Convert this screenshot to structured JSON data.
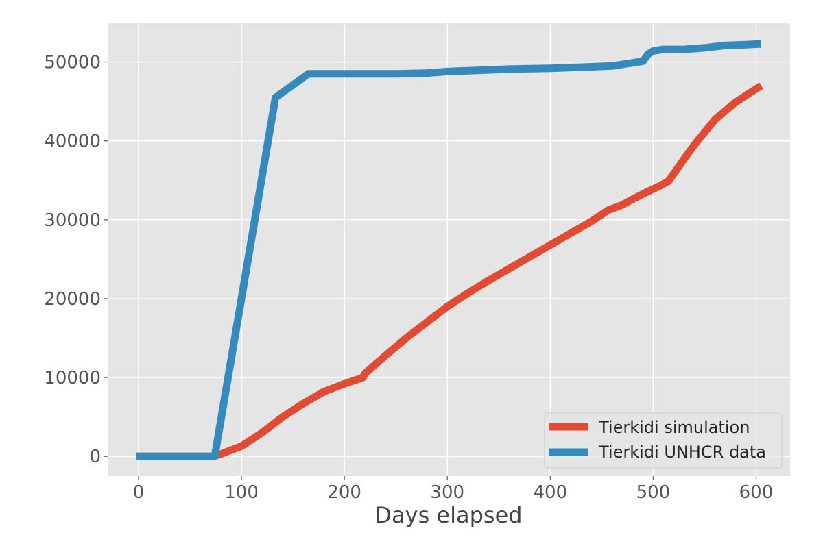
{
  "chart_data": {
    "type": "line",
    "title": "",
    "xlabel": "Days elapsed",
    "ylabel": "",
    "xlim": [
      -30,
      633
    ],
    "ylim": [
      -2500,
      55000
    ],
    "xticks": [
      0,
      100,
      200,
      300,
      400,
      500,
      600
    ],
    "xtick_labels": [
      "0",
      "100",
      "200",
      "300",
      "400",
      "500",
      "600"
    ],
    "yticks": [
      0,
      10000,
      20000,
      30000,
      40000,
      50000
    ],
    "ytick_labels": [
      "0",
      "10000",
      "20000",
      "30000",
      "40000",
      "50000"
    ],
    "grid": true,
    "legend_position": "bottom-right",
    "colors": {
      "background": "#e5e5e5",
      "grid": "#ffffff",
      "simulation": "#e24a33",
      "unhcr": "#348abd"
    },
    "series": [
      {
        "name": "Tierkidi simulation",
        "color": "#e24a33",
        "x": [
          -2,
          73,
          80,
          100,
          120,
          140,
          160,
          180,
          200,
          218,
          220,
          240,
          260,
          280,
          300,
          320,
          340,
          360,
          380,
          400,
          420,
          440,
          456,
          470,
          480,
          495,
          505,
          515,
          522,
          530,
          540,
          560,
          580,
          600,
          605
        ],
        "y": [
          0,
          0,
          300,
          1300,
          3000,
          5000,
          6700,
          8200,
          9200,
          10000,
          10500,
          12800,
          15000,
          17000,
          19000,
          20700,
          22300,
          23800,
          25300,
          26800,
          28300,
          29800,
          31200,
          31900,
          32600,
          33600,
          34200,
          34900,
          36200,
          37700,
          39500,
          42700,
          44900,
          46600,
          47000
        ]
      },
      {
        "name": "Tierkidi UNHCR data",
        "color": "#348abd",
        "x": [
          -2,
          74,
          133,
          165,
          200,
          250,
          280,
          300,
          320,
          340,
          360,
          400,
          420,
          440,
          460,
          470,
          490,
          495,
          500,
          510,
          530,
          550,
          570,
          590,
          605
        ],
        "y": [
          0,
          0,
          45500,
          48500,
          48500,
          48500,
          48600,
          48800,
          48900,
          49000,
          49100,
          49200,
          49300,
          49400,
          49500,
          49700,
          50100,
          51000,
          51400,
          51600,
          51600,
          51800,
          52100,
          52200,
          52300
        ]
      }
    ]
  }
}
